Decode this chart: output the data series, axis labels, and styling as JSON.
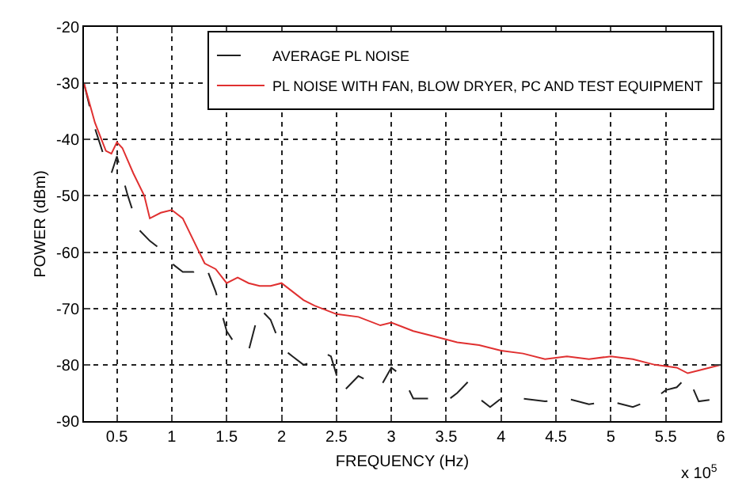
{
  "chart_data": {
    "type": "line",
    "xlabel": "FREQUENCY (Hz)",
    "ylabel": "POWER (dBm)",
    "annotations": [
      "x 10$^{5}$"
    ],
    "xlim": [
      0.2,
      6
    ],
    "xticks": [
      0.5,
      1,
      1.5,
      2,
      2.5,
      3,
      3.5,
      4,
      4.5,
      5,
      5.5,
      6
    ],
    "ylim": [
      -90,
      -20
    ],
    "yticks": [
      -90,
      -80,
      -70,
      -60,
      -50,
      -40,
      -30,
      -20
    ],
    "grid": true,
    "legend": "top right",
    "marker": "none",
    "series": [
      {
        "name": "AVERAGE PL NOISE",
        "color": "#202020",
        "line_style": "dashed",
        "x": [
          0.2,
          0.3,
          0.4,
          0.45,
          0.5,
          0.6,
          0.7,
          0.8,
          0.9,
          1.0,
          1.1,
          1.2,
          1.3,
          1.4,
          1.5,
          1.6,
          1.7,
          1.8,
          1.9,
          2.0,
          2.1,
          2.2,
          2.3,
          2.4,
          2.45,
          2.55,
          2.7,
          2.8,
          2.9,
          3.0,
          3.1,
          3.2,
          3.4,
          3.5,
          3.6,
          3.7,
          3.8,
          3.9,
          4.0,
          4.2,
          4.4,
          4.6,
          4.8,
          5.0,
          5.2,
          5.4,
          5.5,
          5.6,
          5.7,
          5.8,
          6.0
        ],
        "values": [
          -30,
          -38,
          -44,
          -46,
          -43,
          -50,
          -56,
          -58,
          -59.5,
          -62,
          -63.5,
          -63.5,
          -62,
          -67,
          -74,
          -77,
          -77.5,
          -70,
          -72,
          -77,
          -78.5,
          -80,
          -79.5,
          -78,
          -78.5,
          -85,
          -82,
          -83,
          -84,
          -80.5,
          -82,
          -86,
          -86,
          -86.5,
          -85,
          -83,
          -86,
          -87.5,
          -86,
          -86,
          -86.5,
          -86,
          -87,
          -86.5,
          -87.5,
          -86,
          -84.5,
          -84,
          -82,
          -86.5,
          -86
        ]
      },
      {
        "name": "PL NOISE WITH FAN, BLOW DRYER, PC AND TEST EQUIPMENT",
        "color": "#e03030",
        "line_style": "solid",
        "x": [
          0.2,
          0.3,
          0.4,
          0.45,
          0.5,
          0.55,
          0.65,
          0.75,
          0.8,
          0.9,
          1.0,
          1.1,
          1.2,
          1.3,
          1.4,
          1.5,
          1.6,
          1.7,
          1.8,
          1.9,
          2.0,
          2.1,
          2.2,
          2.3,
          2.5,
          2.7,
          2.9,
          3.0,
          3.2,
          3.4,
          3.6,
          3.8,
          4.0,
          4.2,
          4.4,
          4.6,
          4.8,
          5.0,
          5.2,
          5.4,
          5.6,
          5.7,
          5.8,
          6.0
        ],
        "values": [
          -30,
          -37,
          -42,
          -42.5,
          -40.5,
          -41.5,
          -46,
          -50,
          -54,
          -53,
          -52.5,
          -54,
          -58,
          -62,
          -63,
          -65.5,
          -64.5,
          -65.5,
          -66,
          -66,
          -65.5,
          -67,
          -68.5,
          -69.5,
          -71,
          -71.5,
          -73,
          -72.5,
          -74,
          -75,
          -76,
          -76.5,
          -77.5,
          -78,
          -79,
          -78.5,
          -79,
          -78.5,
          -79,
          -80,
          -80.5,
          -81.5,
          -81,
          -80
        ]
      }
    ]
  }
}
